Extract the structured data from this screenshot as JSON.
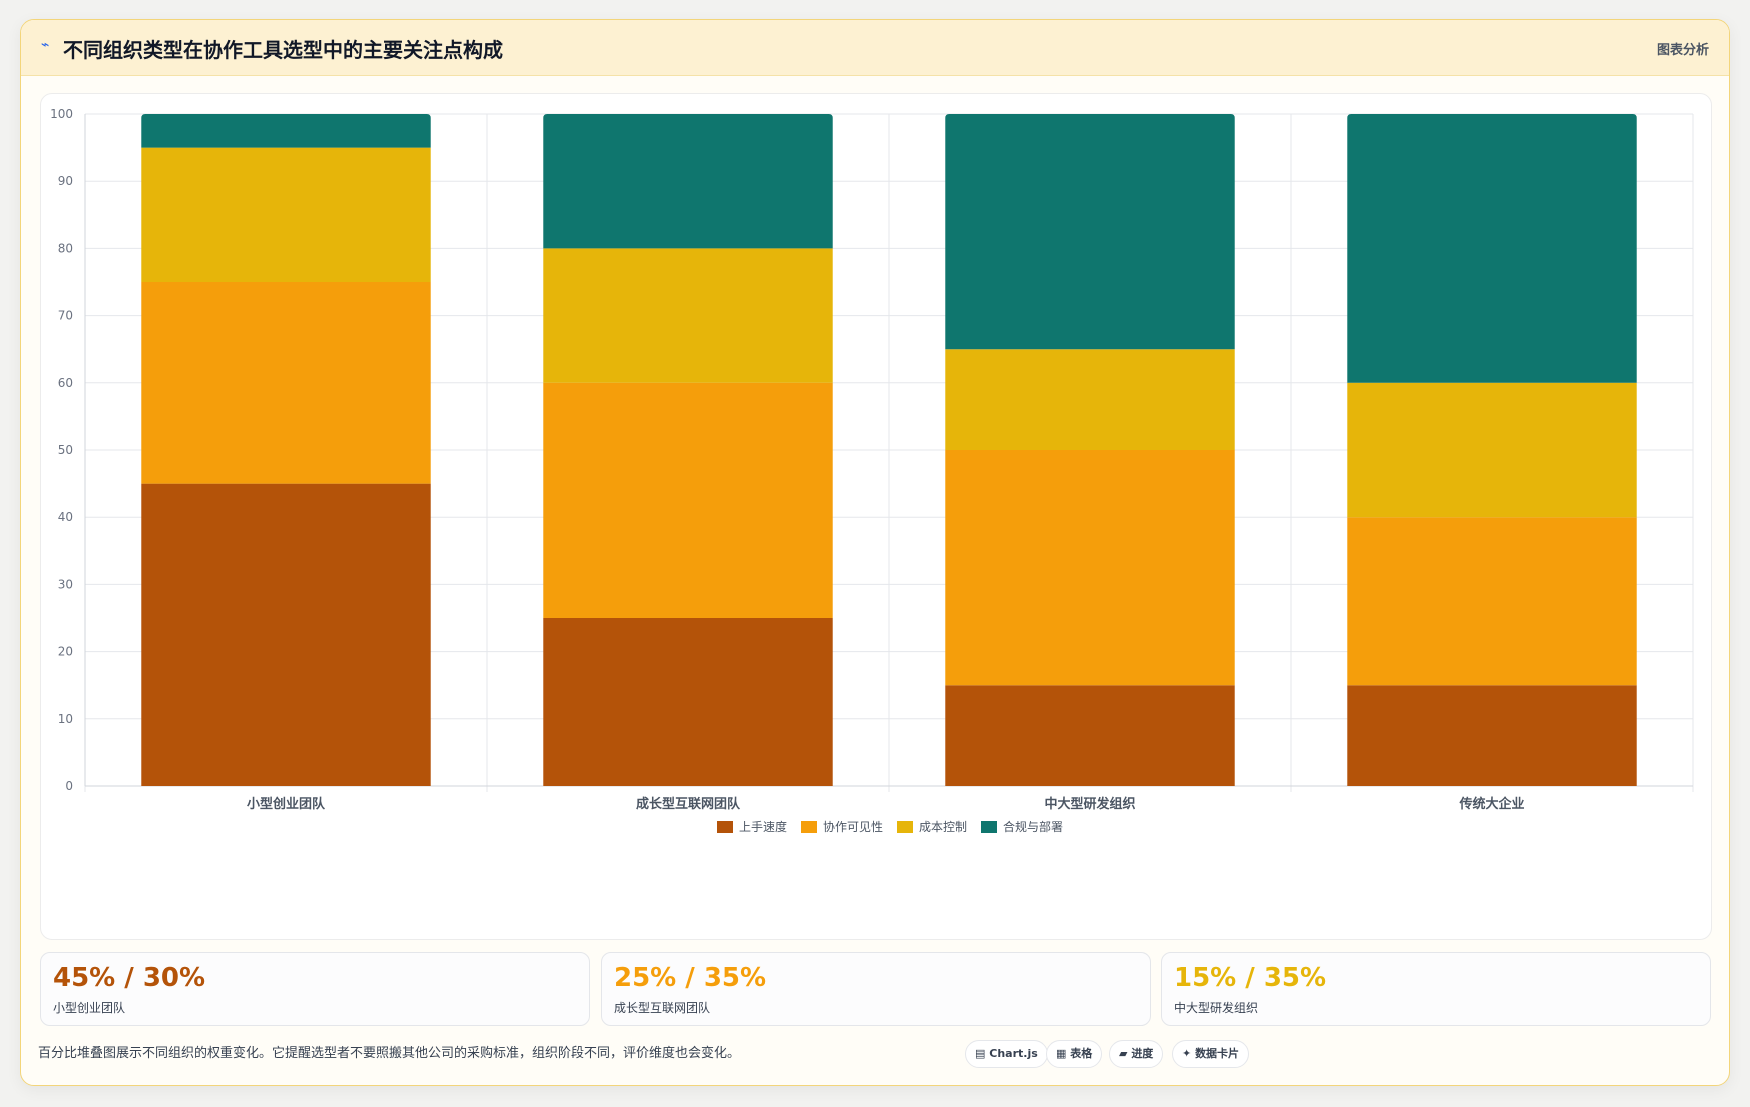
{
  "header": {
    "icon": "trend-icon",
    "title": "不同组织类型在协作工具选型中的主要关注点构成",
    "tag": "图表分析"
  },
  "colors": {
    "speed": "#b45309",
    "visibility": "#f59e0b",
    "cost": "#e6b50a",
    "compliance": "#0f766e",
    "grid": "#e5e7eb",
    "axis_text": "#6b7280"
  },
  "chart_data": {
    "type": "bar",
    "stacked": true,
    "categories": [
      "小型创业团队",
      "成长型互联网团队",
      "中大型研发组织",
      "传统大企业"
    ],
    "series": [
      {
        "name": "上手速度",
        "values": [
          45,
          25,
          15,
          15
        ],
        "color": "#b45309"
      },
      {
        "name": "协作可见性",
        "values": [
          30,
          35,
          35,
          25
        ],
        "color": "#f59e0b"
      },
      {
        "name": "成本控制",
        "values": [
          20,
          20,
          15,
          20
        ],
        "color": "#e6b50a"
      },
      {
        "name": "合规与部署",
        "values": [
          5,
          20,
          35,
          40
        ],
        "color": "#0f766e"
      }
    ],
    "ylim": [
      0,
      100
    ],
    "yticks": [
      0,
      10,
      20,
      30,
      40,
      50,
      60,
      70,
      80,
      90,
      100
    ],
    "grid": true,
    "legend_position": "bottom-center"
  },
  "stats": [
    {
      "value": "45% / 30%",
      "label": "小型创业团队",
      "color": "#b45309"
    },
    {
      "value": "25% / 35%",
      "label": "成长型互联网团队",
      "color": "#f59e0b"
    },
    {
      "value": "15% / 35%",
      "label": "中大型研发组织",
      "color": "#e6b50a"
    }
  ],
  "footnote": "百分比堆叠图展示不同组织的权重变化。它提醒选型者不要照搬其他公司的采购标准，组织阶段不同，评价维度也会变化。",
  "chips": [
    {
      "icon": "chart-icon",
      "glyph": "▤",
      "label": "Chart.js"
    },
    {
      "icon": "table-icon",
      "glyph": "▦",
      "label": "表格"
    },
    {
      "icon": "progress-icon",
      "glyph": "▰",
      "label": "进度"
    },
    {
      "icon": "card-icon",
      "glyph": "✦",
      "label": "数据卡片"
    }
  ]
}
